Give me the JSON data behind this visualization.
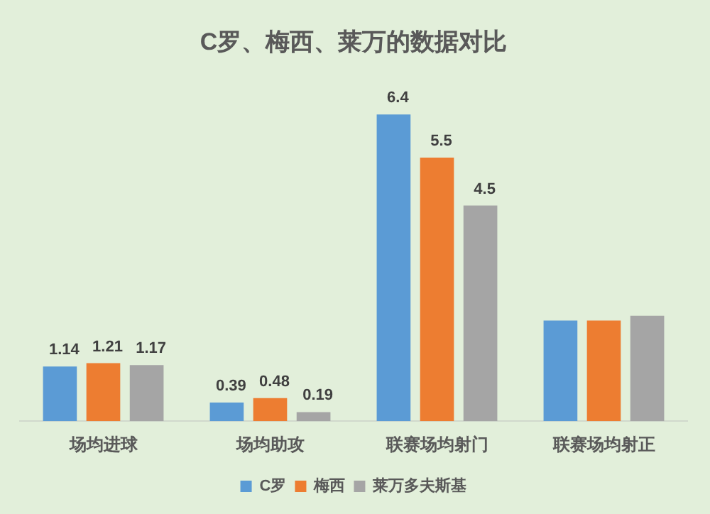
{
  "chart_data": {
    "type": "bar",
    "title": "C罗、梅西、莱万的数据对比",
    "categories": [
      "场均进球",
      "场均助攻",
      "联赛场均射门",
      "联赛场均射正"
    ],
    "series": [
      {
        "name": "C罗",
        "color": "#5b9bd5",
        "values": [
          1.14,
          0.39,
          6.4,
          2.1
        ],
        "value_labels": [
          "1.14",
          "0.39",
          "6.4",
          null
        ]
      },
      {
        "name": "梅西",
        "color": "#ed7d31",
        "values": [
          1.21,
          0.48,
          5.5,
          2.1
        ],
        "value_labels": [
          "1.21",
          "0.48",
          "5.5",
          null
        ]
      },
      {
        "name": "莱万多夫斯基",
        "color": "#a5a5a5",
        "values": [
          1.17,
          0.19,
          4.5,
          2.2
        ],
        "value_labels": [
          "1.17",
          "0.19",
          "4.5",
          null
        ]
      }
    ],
    "tick_labels": "x",
    "grid": false,
    "legend": "bottom"
  }
}
